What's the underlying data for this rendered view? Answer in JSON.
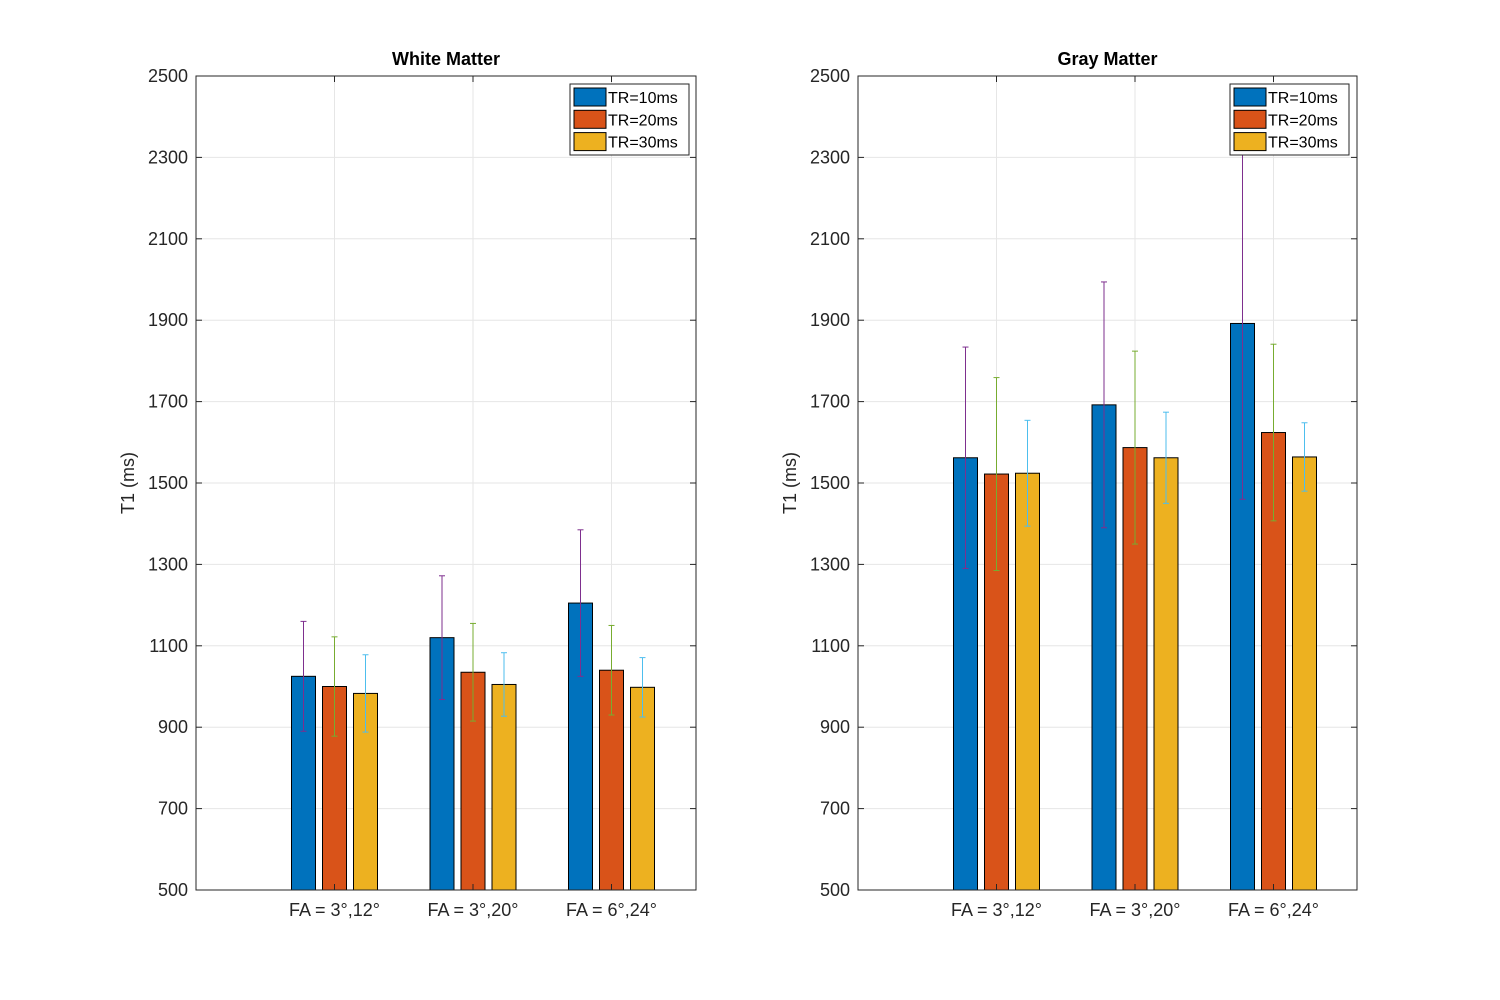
{
  "chart_data": [
    {
      "type": "bar",
      "title": "White Matter",
      "ylabel": "T1 (ms)",
      "xlabel": "",
      "ylim": [
        500,
        2500
      ],
      "yticks": [
        500,
        700,
        900,
        1100,
        1300,
        1500,
        1700,
        1900,
        2100,
        2300,
        2500
      ],
      "grid": true,
      "legend_position": "top-right",
      "categories": [
        "FA = 3°,12°",
        "FA = 3°,20°",
        "FA = 6°,24°"
      ],
      "series": [
        {
          "name": "TR=10ms",
          "color": "#0072BD",
          "error_color": "#7E2F8E",
          "values": [
            1025,
            1120,
            1205
          ],
          "errors": [
            135,
            152,
            180
          ]
        },
        {
          "name": "TR=20ms",
          "color": "#D95319",
          "error_color": "#77AC30",
          "values": [
            1000,
            1035,
            1040
          ],
          "errors": [
            122,
            120,
            110
          ]
        },
        {
          "name": "TR=30ms",
          "color": "#EDB120",
          "error_color": "#4DBEEE",
          "values": [
            983,
            1005,
            998
          ],
          "errors": [
            95,
            78,
            73
          ]
        }
      ]
    },
    {
      "type": "bar",
      "title": "Gray Matter",
      "ylabel": "T1 (ms)",
      "xlabel": "",
      "ylim": [
        500,
        2500
      ],
      "yticks": [
        500,
        700,
        900,
        1100,
        1300,
        1500,
        1700,
        1900,
        2100,
        2300,
        2500
      ],
      "grid": true,
      "legend_position": "top-right",
      "categories": [
        "FA = 3°,12°",
        "FA = 3°,20°",
        "FA = 6°,24°"
      ],
      "series": [
        {
          "name": "TR=10ms",
          "color": "#0072BD",
          "error_color": "#7E2F8E",
          "values": [
            1562,
            1692,
            1892
          ],
          "errors": [
            272,
            302,
            432
          ]
        },
        {
          "name": "TR=20ms",
          "color": "#D95319",
          "error_color": "#77AC30",
          "values": [
            1522,
            1587,
            1624
          ],
          "errors": [
            237,
            237,
            217
          ]
        },
        {
          "name": "TR=30ms",
          "color": "#EDB120",
          "error_color": "#4DBEEE",
          "values": [
            1524,
            1562,
            1564
          ],
          "errors": [
            130,
            112,
            84
          ]
        }
      ]
    }
  ]
}
